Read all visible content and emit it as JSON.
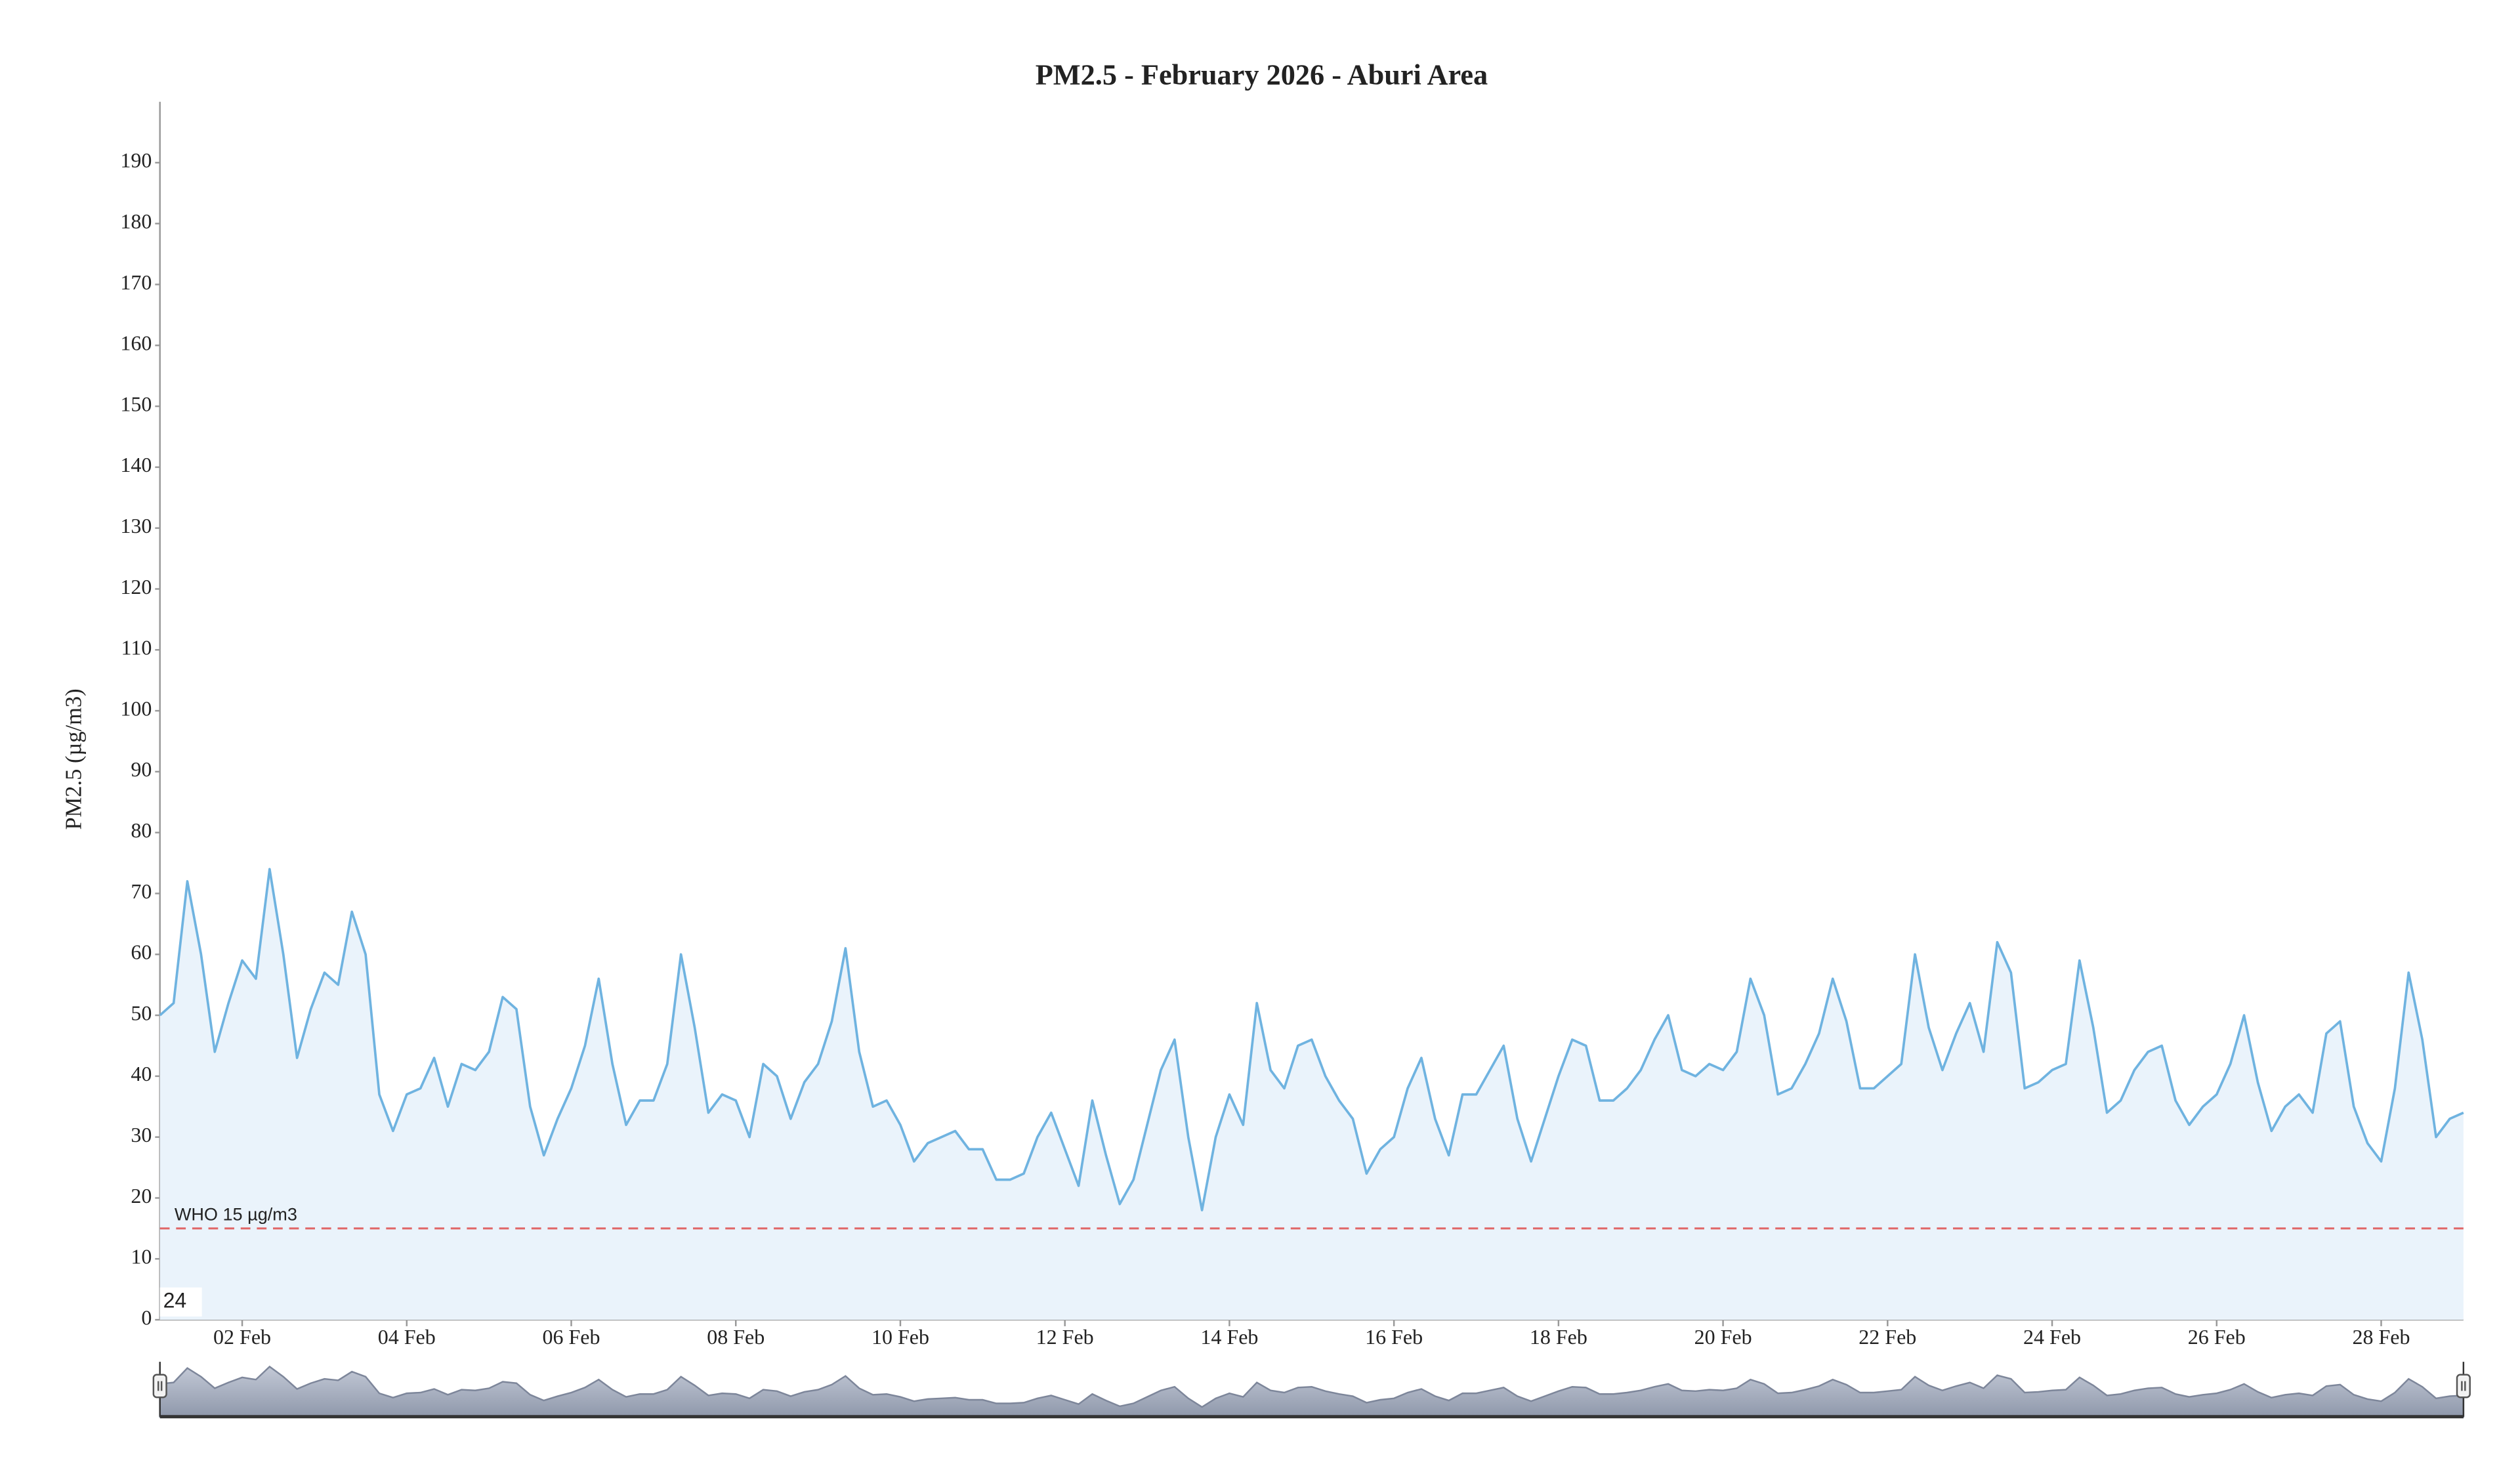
{
  "chart_data": {
    "type": "area",
    "title": "PM2.5 - February 2026 - Aburi Area",
    "y_label": "PM2.5 (µg/m3)",
    "corner_label": "24",
    "color": "#6fb3e0",
    "fill": "#eaf3fb",
    "xlim": [
      0,
      672
    ],
    "ylim": [
      0,
      200
    ],
    "yticks": [
      0,
      10,
      20,
      30,
      40,
      50,
      60,
      70,
      80,
      90,
      100,
      110,
      120,
      130,
      140,
      150,
      160,
      170,
      180,
      190
    ],
    "xticks": [
      {
        "value": 24,
        "label": "02 Feb"
      },
      {
        "value": 72,
        "label": "04 Feb"
      },
      {
        "value": 120,
        "label": "06 Feb"
      },
      {
        "value": 168,
        "label": "08 Feb"
      },
      {
        "value": 216,
        "label": "10 Feb"
      },
      {
        "value": 264,
        "label": "12 Feb"
      },
      {
        "value": 312,
        "label": "14 Feb"
      },
      {
        "value": 360,
        "label": "16 Feb"
      },
      {
        "value": 408,
        "label": "18 Feb"
      },
      {
        "value": 456,
        "label": "20 Feb"
      },
      {
        "value": 504,
        "label": "22 Feb"
      },
      {
        "value": 552,
        "label": "24 Feb"
      },
      {
        "value": 600,
        "label": "26 Feb"
      },
      {
        "value": 648,
        "label": "28 Feb"
      }
    ],
    "annotations": [
      {
        "text": "WHO 15 µg/m3",
        "y": 15,
        "color": "#e06666"
      }
    ],
    "x": [
      0,
      4,
      8,
      12,
      16,
      20,
      24,
      28,
      32,
      36,
      40,
      44,
      48,
      52,
      56,
      60,
      64,
      68,
      72,
      76,
      80,
      84,
      88,
      92,
      96,
      100,
      104,
      108,
      112,
      116,
      120,
      124,
      128,
      132,
      136,
      140,
      144,
      148,
      152,
      156,
      160,
      164,
      168,
      172,
      176,
      180,
      184,
      188,
      192,
      196,
      200,
      204,
      208,
      212,
      216,
      220,
      224,
      228,
      232,
      236,
      240,
      244,
      248,
      252,
      256,
      260,
      264,
      268,
      272,
      276,
      280,
      284,
      288,
      292,
      296,
      300,
      304,
      308,
      312,
      316,
      320,
      324,
      328,
      332,
      336,
      340,
      344,
      348,
      352,
      356,
      360,
      364,
      368,
      372,
      376,
      380,
      384,
      388,
      392,
      396,
      400,
      404,
      408,
      412,
      416,
      420,
      424,
      428,
      432,
      436,
      440,
      444,
      448,
      452,
      456,
      460,
      464,
      468,
      472,
      476,
      480,
      484,
      488,
      492,
      496,
      500,
      504,
      508,
      512,
      516,
      520,
      524,
      528,
      532,
      536,
      540,
      544,
      548,
      552,
      556,
      560,
      564,
      568,
      572,
      576,
      580,
      584,
      588,
      592,
      596,
      600,
      604,
      608,
      612,
      616,
      620,
      624,
      628,
      632,
      636,
      640,
      644,
      648,
      652,
      656,
      660,
      664,
      668,
      672
    ],
    "values": [
      50,
      52,
      72,
      60,
      44,
      52,
      59,
      56,
      74,
      60,
      43,
      51,
      57,
      55,
      67,
      60,
      37,
      31,
      37,
      38,
      43,
      35,
      42,
      41,
      44,
      53,
      51,
      35,
      27,
      33,
      38,
      45,
      56,
      42,
      32,
      36,
      36,
      42,
      60,
      48,
      34,
      37,
      36,
      30,
      42,
      40,
      33,
      39,
      42,
      49,
      61,
      44,
      35,
      36,
      32,
      26,
      29,
      30,
      31,
      28,
      28,
      23,
      23,
      24,
      30,
      34,
      28,
      22,
      36,
      27,
      19,
      23,
      32,
      41,
      46,
      30,
      18,
      30,
      37,
      32,
      52,
      41,
      38,
      45,
      46,
      40,
      36,
      33,
      24,
      28,
      30,
      38,
      43,
      33,
      27,
      37,
      37,
      41,
      45,
      33,
      26,
      33,
      40,
      46,
      45,
      36,
      36,
      38,
      41,
      46,
      50,
      41,
      40,
      42,
      41,
      44,
      56,
      50,
      37,
      38,
      42,
      47,
      56,
      49,
      38,
      38,
      40,
      42,
      60,
      48,
      41,
      47,
      52,
      44,
      62,
      57,
      38,
      39,
      41,
      42,
      59,
      48,
      34,
      36,
      41,
      44,
      45,
      36,
      32,
      35,
      37,
      42,
      50,
      39,
      31,
      35,
      37,
      34,
      47,
      49,
      35,
      29,
      26,
      38,
      57,
      46,
      30,
      33,
      34
    ]
  }
}
